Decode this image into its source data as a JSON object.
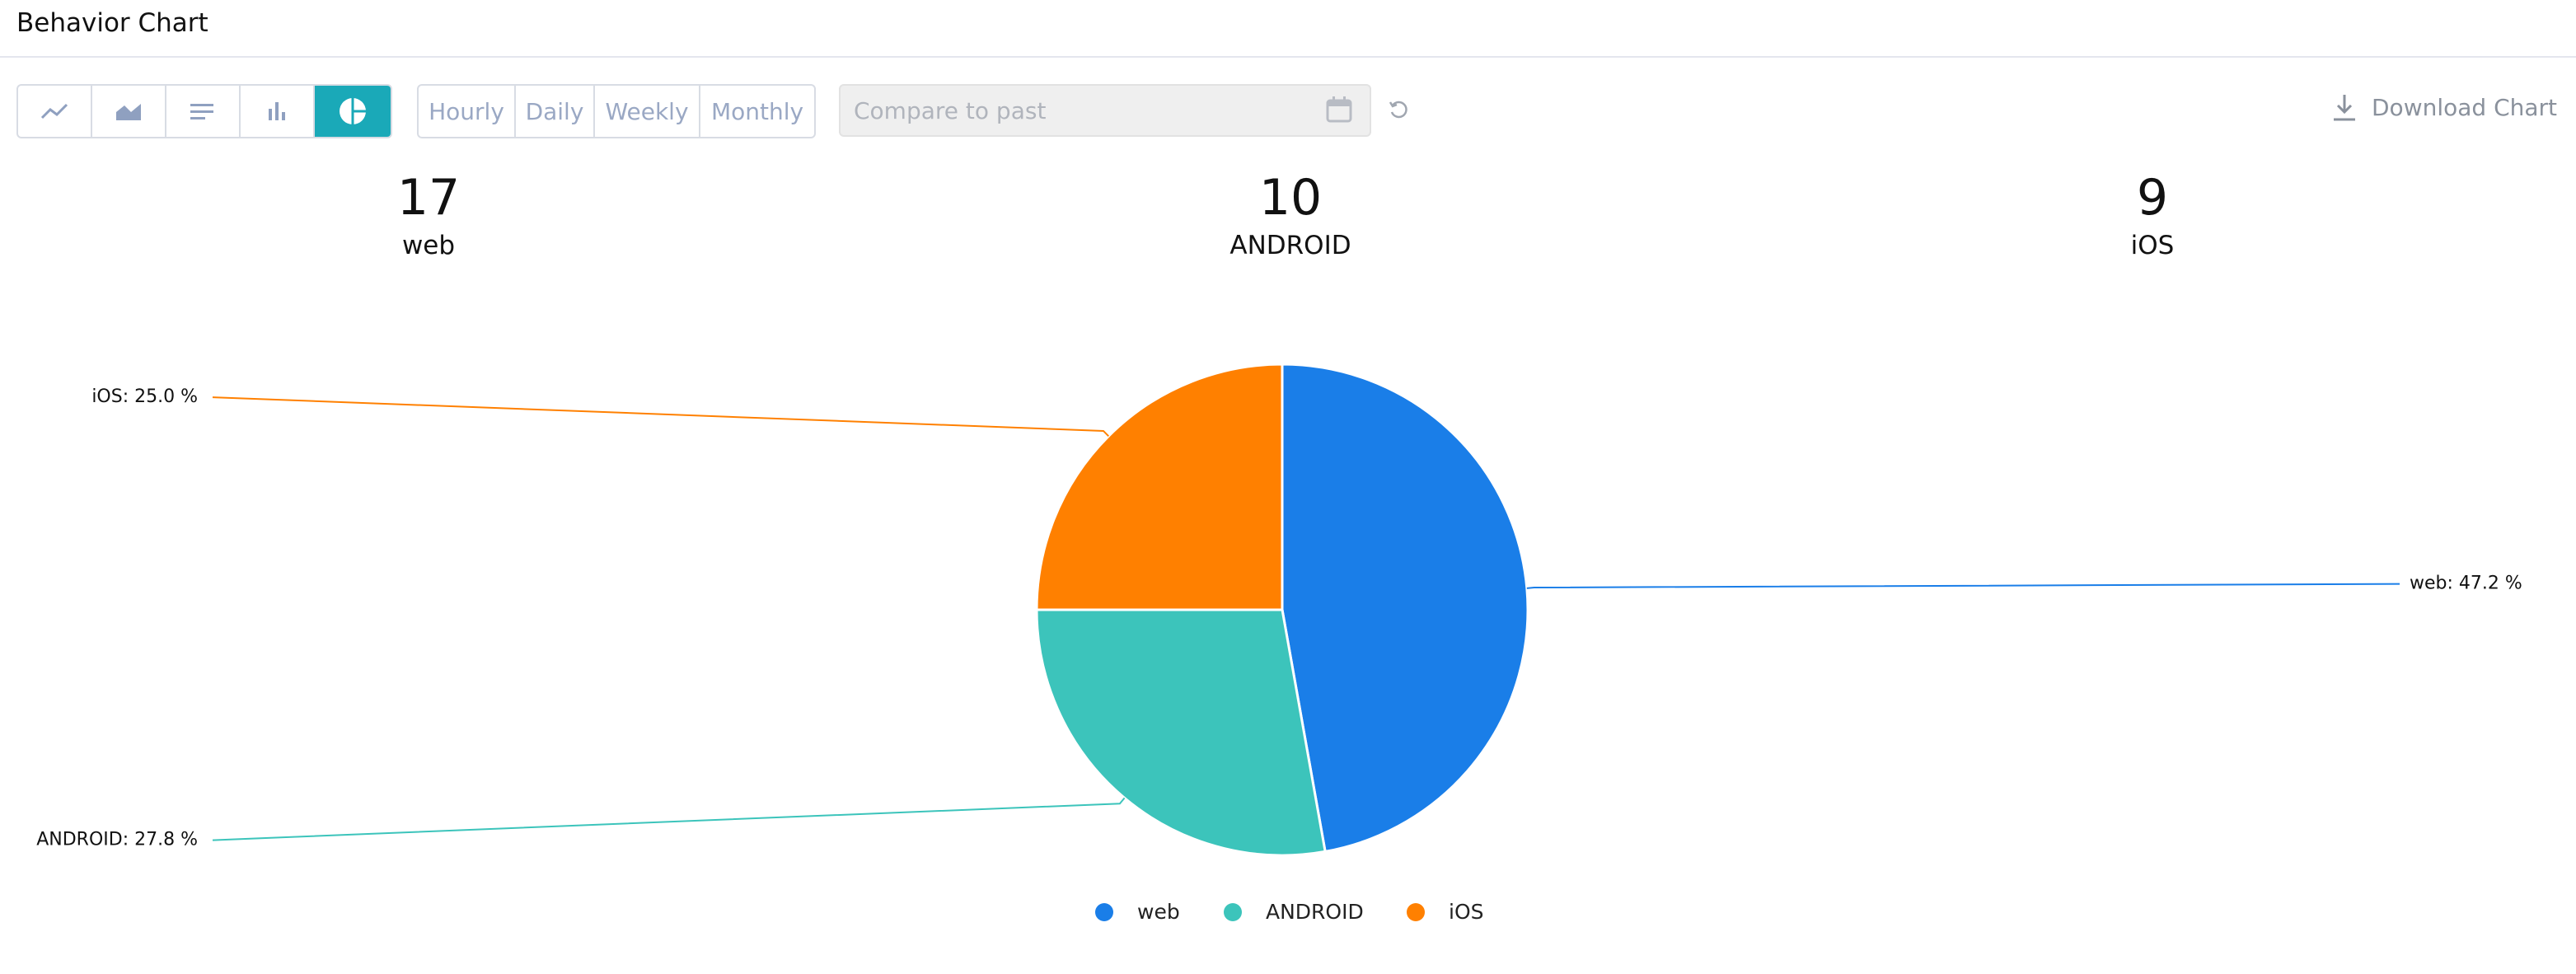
{
  "header": {
    "title": "Behavior Chart"
  },
  "toolbar": {
    "intervals": [
      "Hourly",
      "Daily",
      "Weekly",
      "Monthly"
    ],
    "compare_placeholder": "Compare to past",
    "download": "Download Chart"
  },
  "summary": [
    17,
    10,
    9
  ],
  "chart_data": {
    "type": "pie",
    "categories": [
      "web",
      "ANDROID",
      "iOS"
    ],
    "values": [
      47.2,
      27.8,
      25.0
    ],
    "value_labels": [
      "web: 47.2 %",
      "ANDROID: 27.8 %",
      "iOS: 25.0 %"
    ],
    "colors": [
      "#1a7ee8",
      "#3cc4bb",
      "#ff8000"
    ],
    "legend": "bottom"
  }
}
